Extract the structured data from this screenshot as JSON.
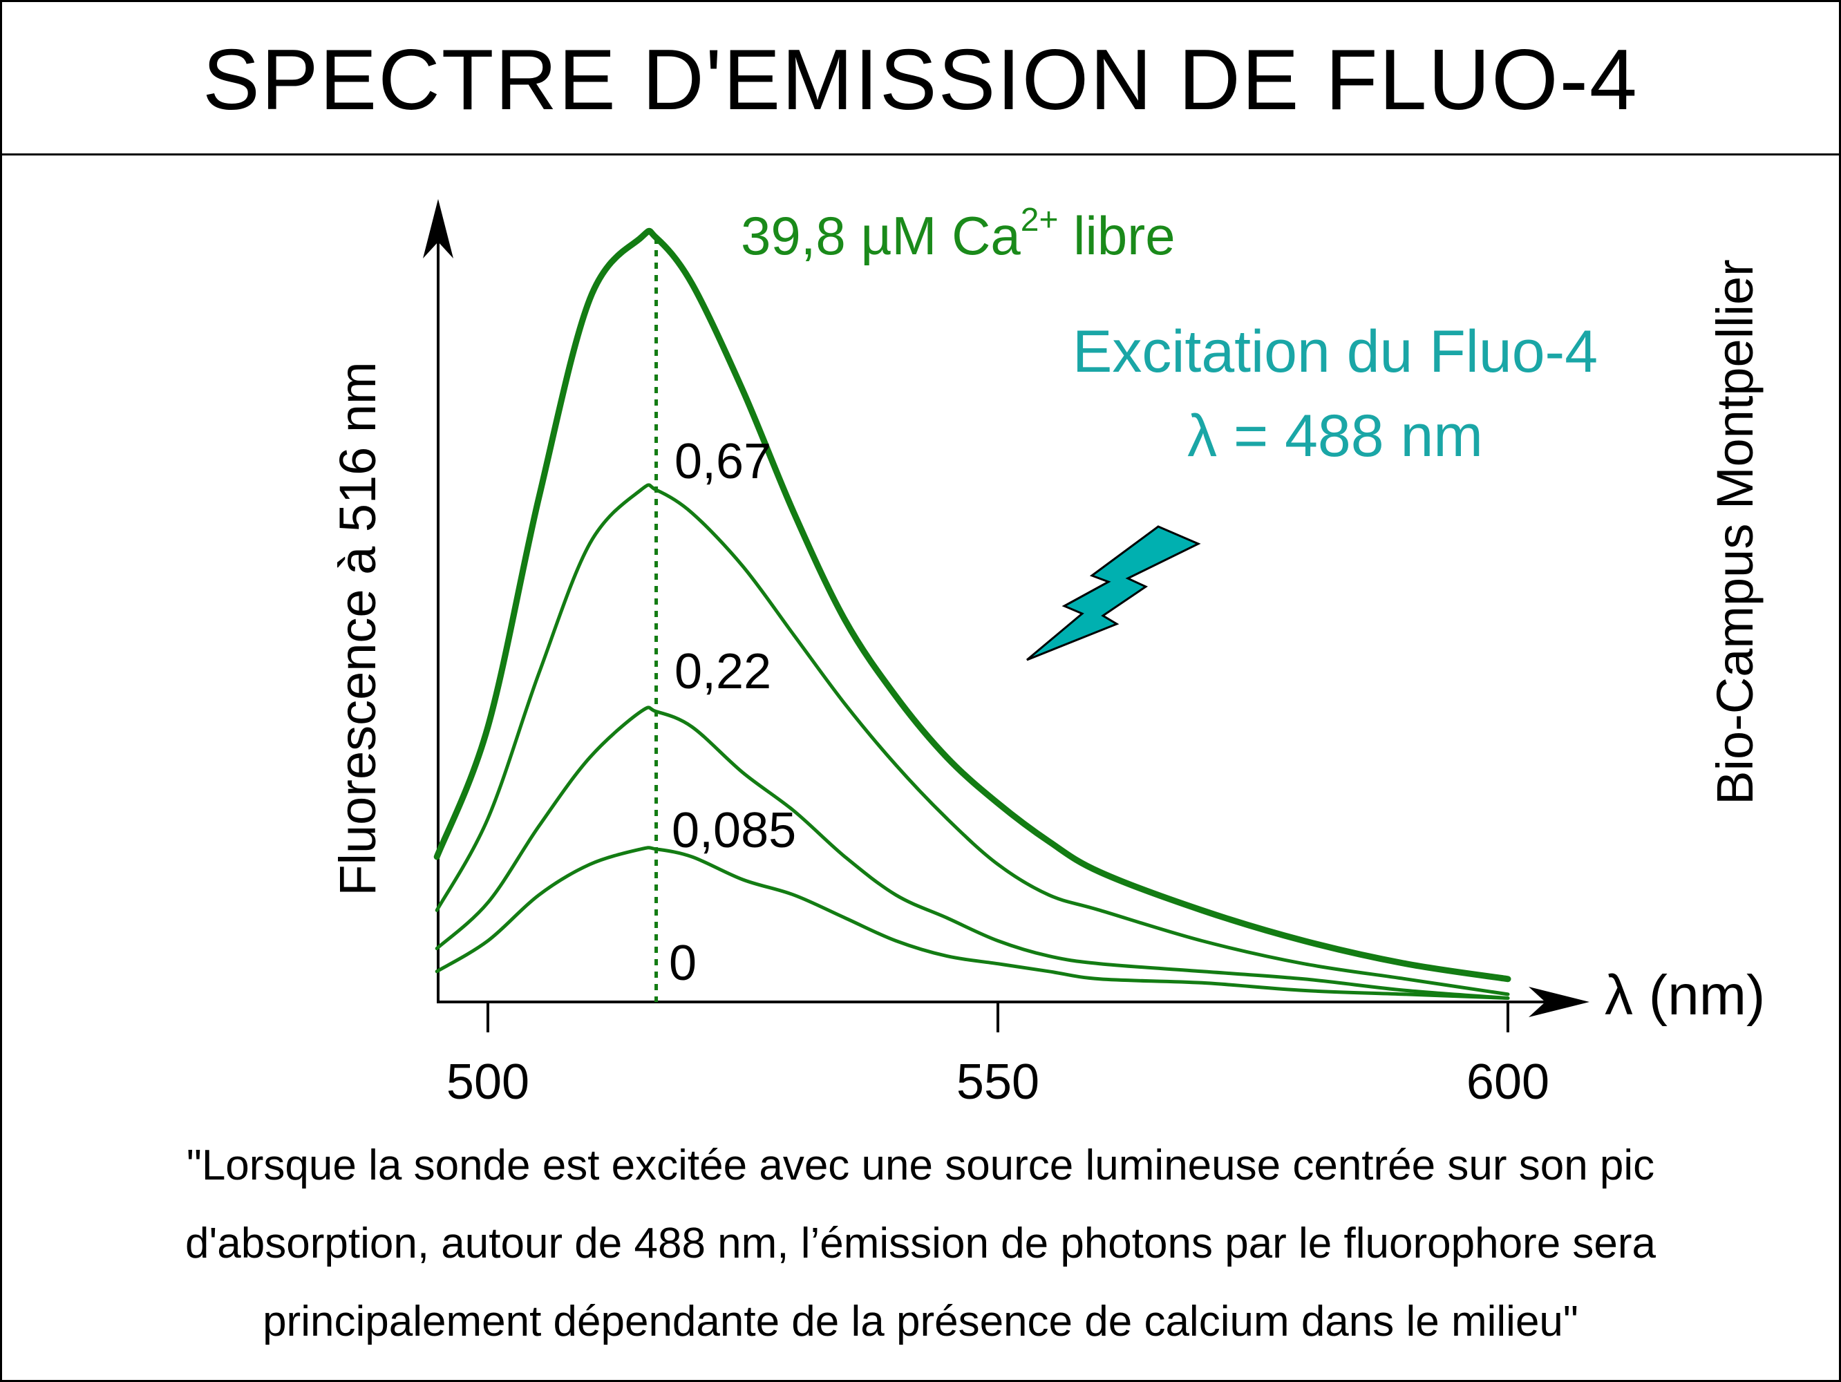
{
  "title": "SPECTRE D'EMISSION DE FLUO-4",
  "chart_data": {
    "type": "line",
    "ylabel": "Fluorescence à 516 nm",
    "xlabel": "λ (nm)",
    "xlim": [
      495,
      600
    ],
    "ylim": [
      0,
      1
    ],
    "x_ticks": [
      "500",
      "550",
      "600"
    ],
    "x": [
      495,
      500,
      505,
      510,
      515,
      516.5,
      520,
      525,
      530,
      535,
      540,
      545,
      550,
      555,
      560,
      570,
      580,
      590,
      600
    ],
    "series": [
      {
        "name": "39,8 µM Ca²⁺ libre",
        "emphasis": true,
        "values": [
          0.19,
          0.36,
          0.66,
          0.92,
          1.0,
          1.0,
          0.94,
          0.8,
          0.64,
          0.5,
          0.4,
          0.32,
          0.26,
          0.21,
          0.17,
          0.12,
          0.08,
          0.05,
          0.03
        ]
      },
      {
        "name": "0,67",
        "values": [
          0.12,
          0.24,
          0.43,
          0.6,
          0.67,
          0.67,
          0.64,
          0.57,
          0.48,
          0.39,
          0.31,
          0.24,
          0.18,
          0.14,
          0.12,
          0.08,
          0.05,
          0.03,
          0.01
        ]
      },
      {
        "name": "0,22",
        "values": [
          0.07,
          0.13,
          0.23,
          0.32,
          0.38,
          0.38,
          0.36,
          0.3,
          0.25,
          0.19,
          0.14,
          0.11,
          0.08,
          0.06,
          0.05,
          0.04,
          0.03,
          0.015,
          0.005
        ]
      },
      {
        "name": "0,085",
        "values": [
          0.04,
          0.08,
          0.14,
          0.18,
          0.2,
          0.2,
          0.19,
          0.16,
          0.14,
          0.11,
          0.08,
          0.06,
          0.05,
          0.04,
          0.03,
          0.025,
          0.015,
          0.01,
          0.005
        ]
      }
    ],
    "curve_labels": [
      "0,67",
      "0,22",
      "0,085",
      "0"
    ],
    "peak_marker": {
      "x": 516.5,
      "style": "dotted"
    },
    "grid": false,
    "colors": {
      "curves": "#137c13",
      "annotation_top": "#1a8a1a",
      "excitation": "#1aa6a6",
      "bolt_fill": "#00b0b0"
    },
    "annotation_top": {
      "main": "39,8 µM Ca",
      "sup": "2+",
      "rest": " libre"
    },
    "excitation": {
      "line1": "Excitation du Fluo-4",
      "line2": "λ = 488 nm",
      "icon": "lightning-bolt-icon"
    }
  },
  "side_label": "Bio-Campus Montpellier",
  "caption_lines": [
    "\"Lorsque la sonde est excitée avec une source lumineuse centrée sur son pic",
    "d'absorption, autour de 488 nm, l’émission de photons par le fluorophore sera",
    "principalement dépendante de la présence de calcium dans le milieu\""
  ]
}
